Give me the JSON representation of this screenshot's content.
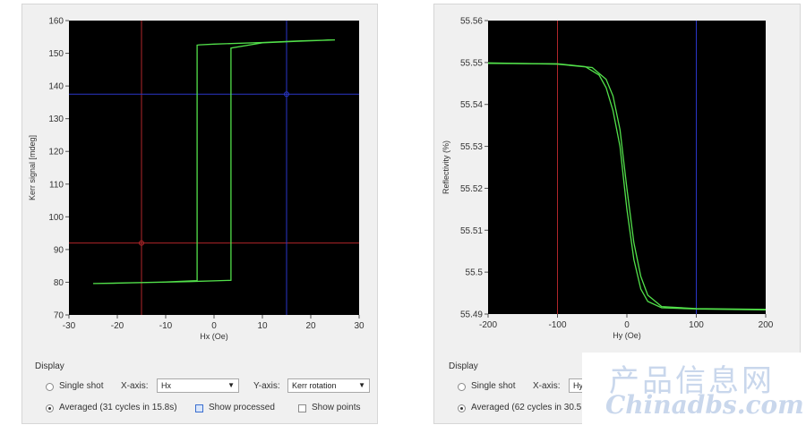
{
  "left_chart": {
    "chart_data": {
      "type": "line",
      "xlabel": "Hx (Oe)",
      "ylabel": "Kerr signal [mdeg]",
      "xlim": [
        -30,
        30
      ],
      "ylim": [
        70,
        160
      ],
      "x_ticks": [
        "-30",
        "-20",
        "-10",
        "0",
        "10",
        "20",
        "30"
      ],
      "y_ticks": [
        "160",
        "150",
        "140",
        "130",
        "120",
        "110",
        "100",
        "90",
        "80",
        "70"
      ],
      "grid": false,
      "series": [
        {
          "points": [
            [
              -25,
              79.6
            ],
            [
              -15,
              79.9
            ],
            [
              -5,
              80.2
            ],
            [
              3.5,
              80.6
            ],
            [
              3.5,
              151.6
            ],
            [
              10,
              153.2
            ],
            [
              18,
              153.7
            ],
            [
              25,
              154.1
            ],
            [
              18,
              153.8
            ],
            [
              10,
              153.3
            ],
            [
              0,
              152.8
            ],
            [
              -3,
              152.6
            ],
            [
              -3.5,
              152.5
            ],
            [
              -3.5,
              80.5
            ],
            [
              -10,
              80.1
            ],
            [
              -20,
              79.7
            ],
            [
              -25,
              79.6
            ]
          ]
        }
      ],
      "cursors": [
        {
          "axis": "x",
          "value": -15,
          "color": "#b0262a"
        },
        {
          "axis": "y",
          "value": 92,
          "color": "#b0262a"
        },
        {
          "axis": "x",
          "value": 15,
          "color": "#2a36c8"
        },
        {
          "axis": "y",
          "value": 137.5,
          "color": "#2a36c8"
        }
      ]
    }
  },
  "right_chart": {
    "chart_data": {
      "type": "line",
      "xlabel": "Hy (Oe)",
      "ylabel": "Reflectivity (%)",
      "xlim": [
        -200,
        200
      ],
      "ylim": [
        55.49,
        55.56
      ],
      "x_ticks": [
        "-200",
        "-100",
        "0",
        "100",
        "200"
      ],
      "y_ticks": [
        "55.56",
        "55.55",
        "55.54",
        "55.53",
        "55.52",
        "55.51",
        "55.5",
        "55.49"
      ],
      "grid": false,
      "series": [
        {
          "points": [
            [
              -200,
              55.5498
            ],
            [
              -100,
              55.5497
            ],
            [
              -60,
              55.549
            ],
            [
              -40,
              55.547
            ],
            [
              -30,
              55.544
            ],
            [
              -20,
              55.5385
            ],
            [
              -10,
              55.53
            ],
            [
              0,
              55.515
            ],
            [
              10,
              55.503
            ],
            [
              20,
              55.496
            ],
            [
              30,
              55.493
            ],
            [
              50,
              55.4915
            ],
            [
              100,
              55.4912
            ],
            [
              200,
              55.491
            ]
          ]
        },
        {
          "points": [
            [
              200,
              55.4911
            ],
            [
              100,
              55.4913
            ],
            [
              50,
              55.4918
            ],
            [
              30,
              55.4945
            ],
            [
              20,
              55.499
            ],
            [
              10,
              55.507
            ],
            [
              0,
              55.52
            ],
            [
              -10,
              55.534
            ],
            [
              -20,
              55.542
            ],
            [
              -30,
              55.546
            ],
            [
              -50,
              55.5488
            ],
            [
              -100,
              55.5496
            ],
            [
              -200,
              55.5499
            ]
          ]
        }
      ],
      "cursors": [
        {
          "axis": "x",
          "value": -100,
          "color": "#b0262a"
        },
        {
          "axis": "x",
          "value": 100,
          "color": "#2a36c8"
        }
      ]
    }
  },
  "left_display": {
    "title": "Display",
    "single_shot": "Single shot",
    "averaged": "Averaged (31 cycles in 15.8s)",
    "x_axis_label": "X-axis:",
    "x_axis_value": "Hx",
    "y_axis_label": "Y-axis:",
    "y_axis_value": "Kerr rotation",
    "show_processed": "Show processed",
    "show_points": "Show points"
  },
  "right_display": {
    "title": "Display",
    "single_shot": "Single shot",
    "averaged": "Averaged (62 cycles in 30.5",
    "x_axis_label": "X-axis:",
    "x_axis_value": "Hy"
  },
  "watermark": {
    "line1": "产品信息网",
    "line2": "Chinadbs.com"
  },
  "colors": {
    "trace": "#52e04a",
    "plot_bg": "#000000",
    "panel_bg": "#f0f0f0",
    "accent_blue": "#3a6ecf"
  }
}
